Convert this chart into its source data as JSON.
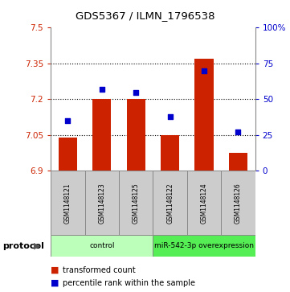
{
  "title": "GDS5367 / ILMN_1796538",
  "samples": [
    "GSM1148121",
    "GSM1148123",
    "GSM1148125",
    "GSM1148122",
    "GSM1148124",
    "GSM1148126"
  ],
  "bar_values": [
    7.04,
    7.2,
    7.2,
    7.05,
    7.37,
    6.975
  ],
  "percentile_values": [
    35,
    57,
    55,
    38,
    70,
    27
  ],
  "bar_baseline": 6.9,
  "left_ylim": [
    6.9,
    7.5
  ],
  "right_ylim": [
    0,
    100
  ],
  "left_yticks": [
    6.9,
    7.05,
    7.2,
    7.35,
    7.5
  ],
  "right_yticks": [
    0,
    25,
    50,
    75,
    100
  ],
  "right_yticklabels": [
    "0",
    "25",
    "50",
    "75",
    "100%"
  ],
  "left_yticklabels": [
    "6.9",
    "7.05",
    "7.2",
    "7.35",
    "7.5"
  ],
  "bar_color": "#cc2200",
  "dot_color": "#0000cc",
  "grid_color": "#888888",
  "dotted_yticks": [
    7.05,
    7.2,
    7.35
  ],
  "groups": [
    {
      "label": "control",
      "indices": [
        0,
        1,
        2
      ],
      "color": "#bbffbb"
    },
    {
      "label": "miR-542-3p overexpression",
      "indices": [
        3,
        4,
        5
      ],
      "color": "#55ee55"
    }
  ],
  "protocol_label": "protocol",
  "legend_bar_label": "transformed count",
  "legend_dot_label": "percentile rank within the sample",
  "bar_color_legend": "#cc2200",
  "dot_color_legend": "#0000cc",
  "bar_width": 0.55,
  "background_color": "#ffffff",
  "sample_box_color": "#cccccc",
  "title_fontsize": 9.5,
  "tick_fontsize": 7.5,
  "sample_fontsize": 5.5,
  "legend_fontsize": 7,
  "proto_fontsize": 8
}
